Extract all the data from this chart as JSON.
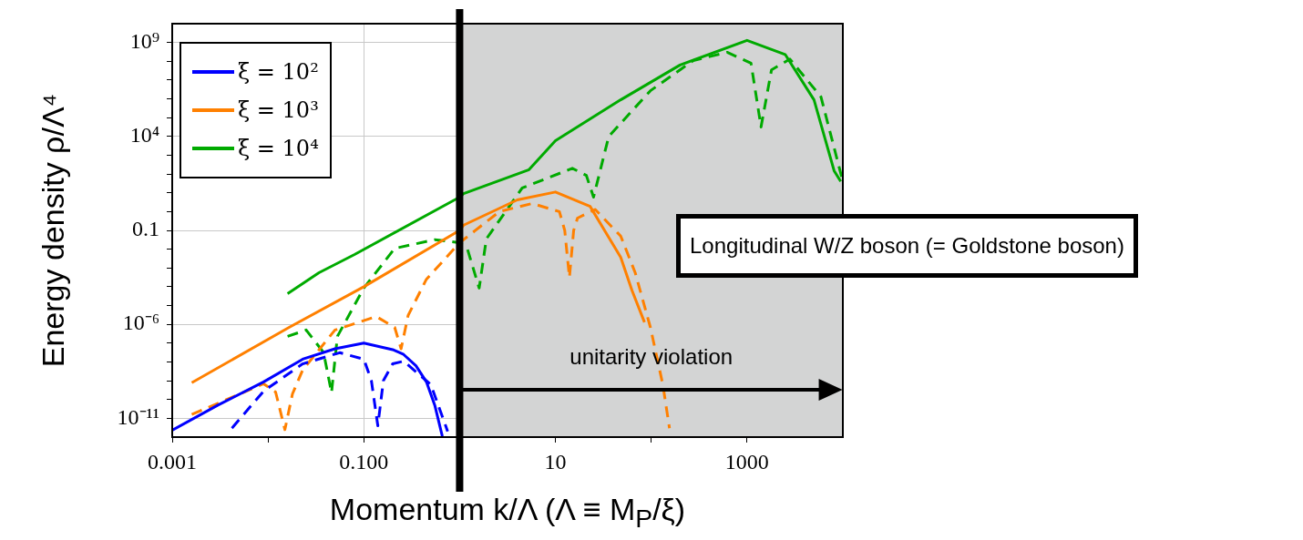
{
  "chart_data": {
    "type": "line",
    "xlabel": "Momentum  k/Λ  (Λ ≡ M$_{P}$/ξ)",
    "ylabel": "Energy density  ρ/Λ⁴",
    "log": "xy",
    "xlim": [
      0.001,
      10000
    ],
    "xticks": [
      0.001,
      {
        "value": 0.01,
        "label": null
      },
      {
        "value": 0.1,
        "label": "0.100"
      },
      {
        "value": 1,
        "label": null
      },
      10,
      {
        "value": 100,
        "label": null
      },
      1000
    ],
    "ylim": [
      1e-12,
      10000000000.0
    ],
    "yticks": [
      {
        "value": 1e-11,
        "label": "10⁻¹¹"
      },
      {
        "value": 1e-10,
        "label": null
      },
      {
        "value": 1e-09,
        "label": null
      },
      {
        "value": 1e-08,
        "label": null
      },
      {
        "value": 1e-07,
        "label": null
      },
      {
        "value": 1e-06,
        "label": "10⁻⁶"
      },
      {
        "value": 1e-05,
        "label": null
      },
      {
        "value": 0.0001,
        "label": null
      },
      {
        "value": 0.001,
        "label": null
      },
      {
        "value": 0.01,
        "label": null
      },
      0.1,
      {
        "value": 1,
        "label": null
      },
      {
        "value": 10,
        "label": null
      },
      {
        "value": 100,
        "label": null
      },
      {
        "value": 1000,
        "label": null
      },
      {
        "value": 10000,
        "label": "10⁴"
      },
      {
        "value": 100000,
        "label": null
      },
      {
        "value": 1000000,
        "label": null
      },
      {
        "value": 10000000,
        "label": null
      },
      {
        "value": 100000000,
        "label": null
      },
      {
        "value": 1000000000,
        "label": "10⁹"
      }
    ],
    "grid": true,
    "legend": "top left",
    "marker": "none",
    "series": [
      {
        "name": "ξ = 10²",
        "color": "#0000ff",
        "line_style": "solid",
        "x": [
          0.001,
          0.003,
          0.009,
          0.023,
          0.05,
          0.1,
          0.2,
          0.26,
          0.35,
          0.45,
          0.55,
          0.66
        ],
        "values": [
          2.3e-12,
          5e-11,
          8.7e-10,
          1.4e-08,
          5e-08,
          1e-07,
          4.5e-08,
          2.5e-08,
          6.3e-09,
          8.7e-10,
          5e-11,
          1.1e-12
        ]
      },
      {
        "color": "#0000ff",
        "line_style": "dashed",
        "x": [
          0.0042,
          0.009,
          0.023,
          0.056,
          0.1,
          0.12,
          0.14,
          0.16,
          0.2,
          0.26,
          0.5,
          0.75
        ],
        "values": [
          3e-12,
          2.8e-10,
          7.9e-09,
          3.1e-08,
          1.4e-08,
          1e-09,
          4e-12,
          1e-09,
          7.9e-09,
          1.1e-08,
          6.3e-10,
          2e-12
        ]
      },
      {
        "name": "ξ = 10³",
        "color": "#ff8000",
        "line_style": "solid",
        "x": [
          0.0016,
          0.0166,
          0.1,
          1,
          1.1,
          4,
          10,
          23,
          48,
          63,
          85
        ],
        "values": [
          7.8e-10,
          6.9e-07,
          0.0001,
          0.1,
          0.19,
          4.2,
          11,
          1.9,
          0.0037,
          6.3e-05,
          1.3e-06
        ]
      },
      {
        "color": "#ff8000",
        "line_style": "dashed",
        "x": [
          0.0016,
          0.009,
          0.012,
          0.015,
          0.018,
          0.023,
          0.05,
          0.135,
          0.21,
          0.245,
          0.29,
          0.45,
          1,
          2.6,
          5.7,
          11,
          12.5,
          14,
          15.5,
          17,
          26,
          48,
          68,
          98,
          132,
          155
        ],
        "values": [
          1.6e-11,
          6.9e-10,
          2.5e-10,
          2.5e-12,
          2e-10,
          3.7e-09,
          5e-07,
          2.6e-06,
          6.9e-07,
          5e-08,
          3e-06,
          0.00025,
          0.022,
          1,
          2.7,
          1,
          0.1,
          0.00032,
          0.1,
          0.45,
          1.3,
          0.05,
          0.00056,
          6.9e-07,
          6.3e-10,
          3e-12
        ]
      },
      {
        "name": "ξ = 10⁴",
        "color": "#00aa00",
        "line_style": "solid",
        "x": [
          0.016,
          0.034,
          0.08,
          1,
          1.1,
          5.3,
          10,
          48,
          200,
          1000,
          2500,
          5000,
          8100,
          9500
        ],
        "values": [
          4.3e-05,
          0.00056,
          0.0052,
          5.9,
          9.1,
          170,
          5900,
          890000.0,
          63000000.0,
          1300000000.0,
          230000000.0,
          890000.0,
          150,
          40
        ]
      },
      {
        "color": "#00aa00",
        "line_style": "dashed",
        "x": [
          0.016,
          0.025,
          0.038,
          0.046,
          0.053,
          0.1,
          0.21,
          0.55,
          1,
          1.2,
          1.6,
          1.9,
          4.5,
          15,
          21,
          25,
          36,
          98,
          275,
          620,
          1100,
          1400,
          1800,
          2800,
          5900,
          10000
        ],
        "values": [
          2.3e-07,
          5e-07,
          3.2e-08,
          2.3e-10,
          2.3e-07,
          8.5e-05,
          0.011,
          0.032,
          0.022,
          0.011,
          8.5e-05,
          0.035,
          18,
          200,
          85,
          5.9,
          10000.0,
          2700000.0,
          110000000.0,
          300000000.0,
          79000000.0,
          32000.0,
          35000000.0,
          130000000.0,
          1300000.0,
          40
        ]
      }
    ],
    "bands": [
      {
        "axis": "x",
        "from": 1,
        "to": 10000,
        "color": "#d3d4d4"
      }
    ],
    "ref_lines": [
      {
        "axis": "x",
        "value": 1,
        "color": "#000000"
      }
    ],
    "annotations": [
      "Longitudinal W/Z boson (= Goldstone boson)",
      "unitarity violation"
    ]
  }
}
